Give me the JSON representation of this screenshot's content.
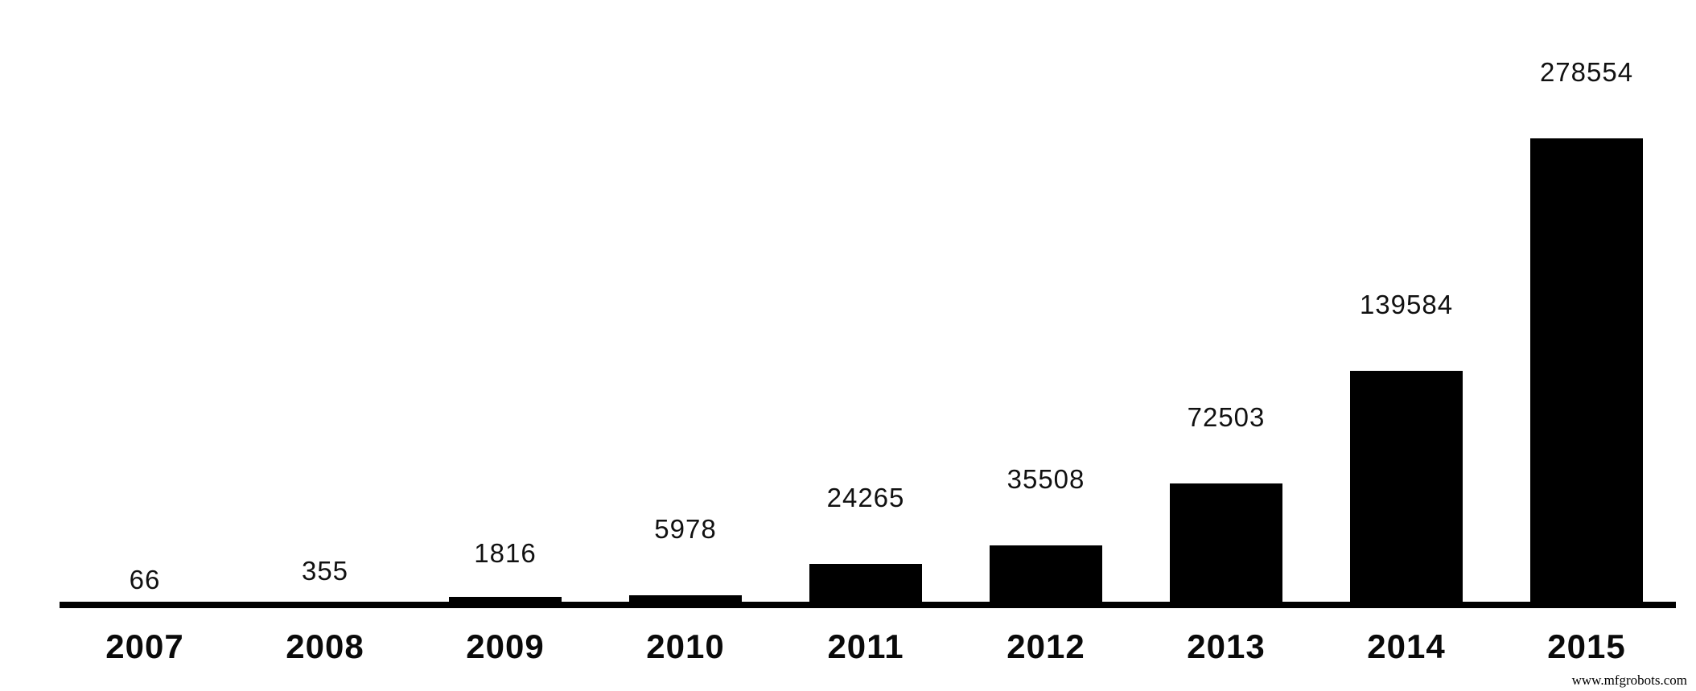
{
  "chart_data": {
    "type": "bar",
    "categories": [
      "2007",
      "2008",
      "2009",
      "2010",
      "2011",
      "2012",
      "2013",
      "2014",
      "2015"
    ],
    "values": [
      66,
      355,
      1816,
      5978,
      24265,
      35508,
      72503,
      139584,
      278554
    ],
    "data_labels": [
      "66",
      "355",
      "1816",
      "5978",
      "24265",
      "35508",
      "72503",
      "139584",
      "278554"
    ],
    "title": "",
    "xlabel": "",
    "ylabel": "",
    "ylim": [
      0,
      278554
    ],
    "grid": false,
    "legend": false,
    "bar_color": "#000000",
    "axis_color": "#000000",
    "label_color": "#111111",
    "tick_label_color": "#0a0a0a",
    "background_color": "#ffffff"
  },
  "watermark": {
    "text": "www.mfgrobots.com"
  }
}
